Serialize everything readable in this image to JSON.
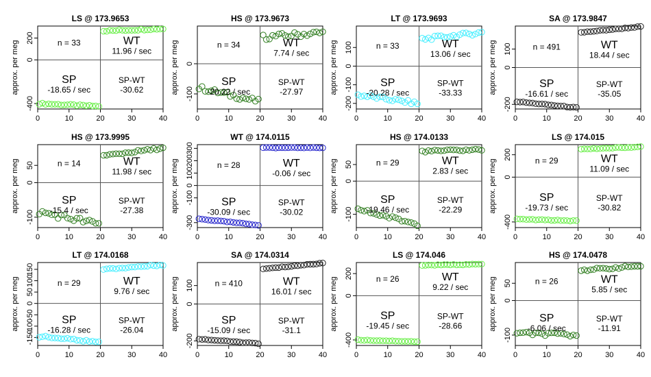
{
  "figure": {
    "ylabel": "approx. per meg",
    "sp_label": "SP",
    "wt_label": "WT",
    "diff_label": "SP-WT",
    "rate_suffix": " / sec",
    "n_prefix": "n = "
  },
  "chart_data": [
    {
      "type": "scatter",
      "title": "LS @ 173.9653",
      "color": "#66ee44",
      "n": 33,
      "wt_rate": "11.96",
      "sp_rate": "-18.65",
      "sp_wt": "-30.62",
      "xlim": [
        0,
        40
      ],
      "ylim": [
        -450,
        310
      ],
      "yticks": [
        -400,
        0,
        200
      ],
      "x_ticks": [
        0,
        10,
        20,
        30,
        40
      ],
      "sp": {
        "start": -400,
        "end": -425,
        "noise": 6
      },
      "wt": {
        "start": 265,
        "end": 285,
        "noise": 6
      }
    },
    {
      "type": "scatter",
      "title": "HS @ 173.9673",
      "color": "#2f7d1f",
      "n": 34,
      "wt_rate": "7.74",
      "sp_rate": "-20.22",
      "sp_wt": "-27.97",
      "xlim": [
        0,
        40
      ],
      "ylim": [
        -150,
        125
      ],
      "yticks": [
        -100,
        0
      ],
      "x_ticks": [
        0,
        10,
        20,
        30,
        40
      ],
      "sp": {
        "start": -80,
        "end": -125,
        "noise": 8
      },
      "wt": {
        "start": 88,
        "end": 103,
        "noise": 9
      }
    },
    {
      "type": "scatter",
      "title": "LT @ 173.9693",
      "color": "#44eeff",
      "n": 33,
      "wt_rate": "13.06",
      "sp_rate": "-20.28",
      "sp_wt": "-33.33",
      "xlim": [
        0,
        40
      ],
      "ylim": [
        -230,
        215
      ],
      "yticks": [
        -200,
        -100,
        0,
        100
      ],
      "x_ticks": [
        0,
        10,
        20,
        30,
        40
      ],
      "sp": {
        "start": -155,
        "end": -200,
        "noise": 9
      },
      "wt": {
        "start": 145,
        "end": 180,
        "noise": 9
      }
    },
    {
      "type": "scatter",
      "title": "SA @ 173.9847",
      "color": "#222222",
      "n": 491,
      "wt_rate": "18.44",
      "sp_rate": "-16.61",
      "sp_wt": "-35.05",
      "xlim": [
        0,
        40
      ],
      "ylim": [
        -225,
        225
      ],
      "yticks": [
        -200,
        0,
        100
      ],
      "x_ticks": [
        0,
        10,
        20,
        30,
        40
      ],
      "sp": {
        "start": -185,
        "end": -218,
        "noise": 2
      },
      "wt": {
        "start": 190,
        "end": 222,
        "noise": 2
      }
    },
    {
      "type": "scatter",
      "title": "HS @ 173.9995",
      "color": "#2f7d1f",
      "n": 14,
      "wt_rate": "11.98",
      "sp_rate": "-15.4",
      "sp_wt": "-27.38",
      "xlim": [
        0,
        40
      ],
      "ylim": [
        -130,
        110
      ],
      "yticks": [
        -100,
        0,
        50
      ],
      "x_ticks": [
        0,
        10,
        20,
        30,
        40
      ],
      "sp": {
        "start": -85,
        "end": -120,
        "noise": 8
      },
      "wt": {
        "start": 78,
        "end": 100,
        "noise": 3
      }
    },
    {
      "type": "scatter",
      "title": "WT @ 174.0115",
      "color": "#2222cc",
      "n": 28,
      "wt_rate": "-0.06",
      "sp_rate": "-30.09",
      "sp_wt": "-30.02",
      "xlim": [
        0,
        40
      ],
      "ylim": [
        -340,
        330
      ],
      "yticks": [
        -300,
        -100,
        0,
        100,
        200,
        300
      ],
      "x_ticks": [
        0,
        10,
        20,
        30,
        40
      ],
      "sp": {
        "start": -270,
        "end": -320,
        "noise": 3
      },
      "wt": {
        "start": 305,
        "end": 305,
        "noise": 2
      }
    },
    {
      "type": "scatter",
      "title": "HS @ 174.0133",
      "color": "#2f7d1f",
      "n": 29,
      "wt_rate": "2.83",
      "sp_rate": "-19.46",
      "sp_wt": "-22.29",
      "xlim": [
        0,
        40
      ],
      "ylim": [
        -140,
        110
      ],
      "yticks": [
        -100,
        0,
        50
      ],
      "x_ticks": [
        0,
        10,
        20,
        30,
        40
      ],
      "sp": {
        "start": -85,
        "end": -130,
        "noise": 5
      },
      "wt": {
        "start": 90,
        "end": 95,
        "noise": 3
      }
    },
    {
      "type": "scatter",
      "title": "LS @ 174.015",
      "color": "#66ee44",
      "n": 29,
      "wt_rate": "11.09",
      "sp_rate": "-19.73",
      "sp_wt": "-30.82",
      "xlim": [
        0,
        40
      ],
      "ylim": [
        -450,
        290
      ],
      "yticks": [
        -400,
        0,
        200
      ],
      "x_ticks": [
        0,
        10,
        20,
        30,
        40
      ],
      "sp": {
        "start": -375,
        "end": -390,
        "noise": 3
      },
      "wt": {
        "start": 250,
        "end": 270,
        "noise": 3
      }
    },
    {
      "type": "scatter",
      "title": "LT @ 174.0168",
      "color": "#44eeff",
      "n": 29,
      "wt_rate": "9.76",
      "sp_rate": "-16.28",
      "sp_wt": "-26.04",
      "xlim": [
        0,
        40
      ],
      "ylim": [
        -185,
        180
      ],
      "yticks": [
        -150,
        -100,
        -50,
        0,
        50,
        100,
        150
      ],
      "x_ticks": [
        0,
        10,
        20,
        30,
        40
      ],
      "sp": {
        "start": -145,
        "end": -170,
        "noise": 4
      },
      "wt": {
        "start": 150,
        "end": 170,
        "noise": 3
      }
    },
    {
      "type": "scatter",
      "title": "SA @ 174.0314",
      "color": "#222222",
      "n": 410,
      "wt_rate": "16.01",
      "sp_rate": "-15.09",
      "sp_wt": "-31.1",
      "xlim": [
        0,
        40
      ],
      "ylim": [
        -225,
        225
      ],
      "yticks": [
        -200,
        0,
        100
      ],
      "x_ticks": [
        0,
        10,
        20,
        30,
        40
      ],
      "sp": {
        "start": -190,
        "end": -215,
        "noise": 2
      },
      "wt": {
        "start": 190,
        "end": 222,
        "noise": 2
      }
    },
    {
      "type": "scatter",
      "title": "LS @ 174.046",
      "color": "#66ee44",
      "n": 26,
      "wt_rate": "9.22",
      "sp_rate": "-19.45",
      "sp_wt": "-28.66",
      "xlim": [
        0,
        40
      ],
      "ylim": [
        -450,
        300
      ],
      "yticks": [
        -400,
        0,
        200
      ],
      "x_ticks": [
        0,
        10,
        20,
        30,
        40
      ],
      "sp": {
        "start": -400,
        "end": -415,
        "noise": 3
      },
      "wt": {
        "start": 275,
        "end": 285,
        "noise": 3
      }
    },
    {
      "type": "scatter",
      "title": "HS @ 174.0478",
      "color": "#2f7d1f",
      "n": 26,
      "wt_rate": "5.85",
      "sp_rate": "-6.06",
      "sp_wt": "-11.91",
      "xlim": [
        0,
        40
      ],
      "ylim": [
        -130,
        110
      ],
      "yticks": [
        -100,
        0,
        50
      ],
      "x_ticks": [
        0,
        10,
        20,
        30,
        40
      ],
      "sp": {
        "start": -95,
        "end": -100,
        "noise": 5
      },
      "wt": {
        "start": 88,
        "end": 100,
        "noise": 3
      }
    }
  ]
}
